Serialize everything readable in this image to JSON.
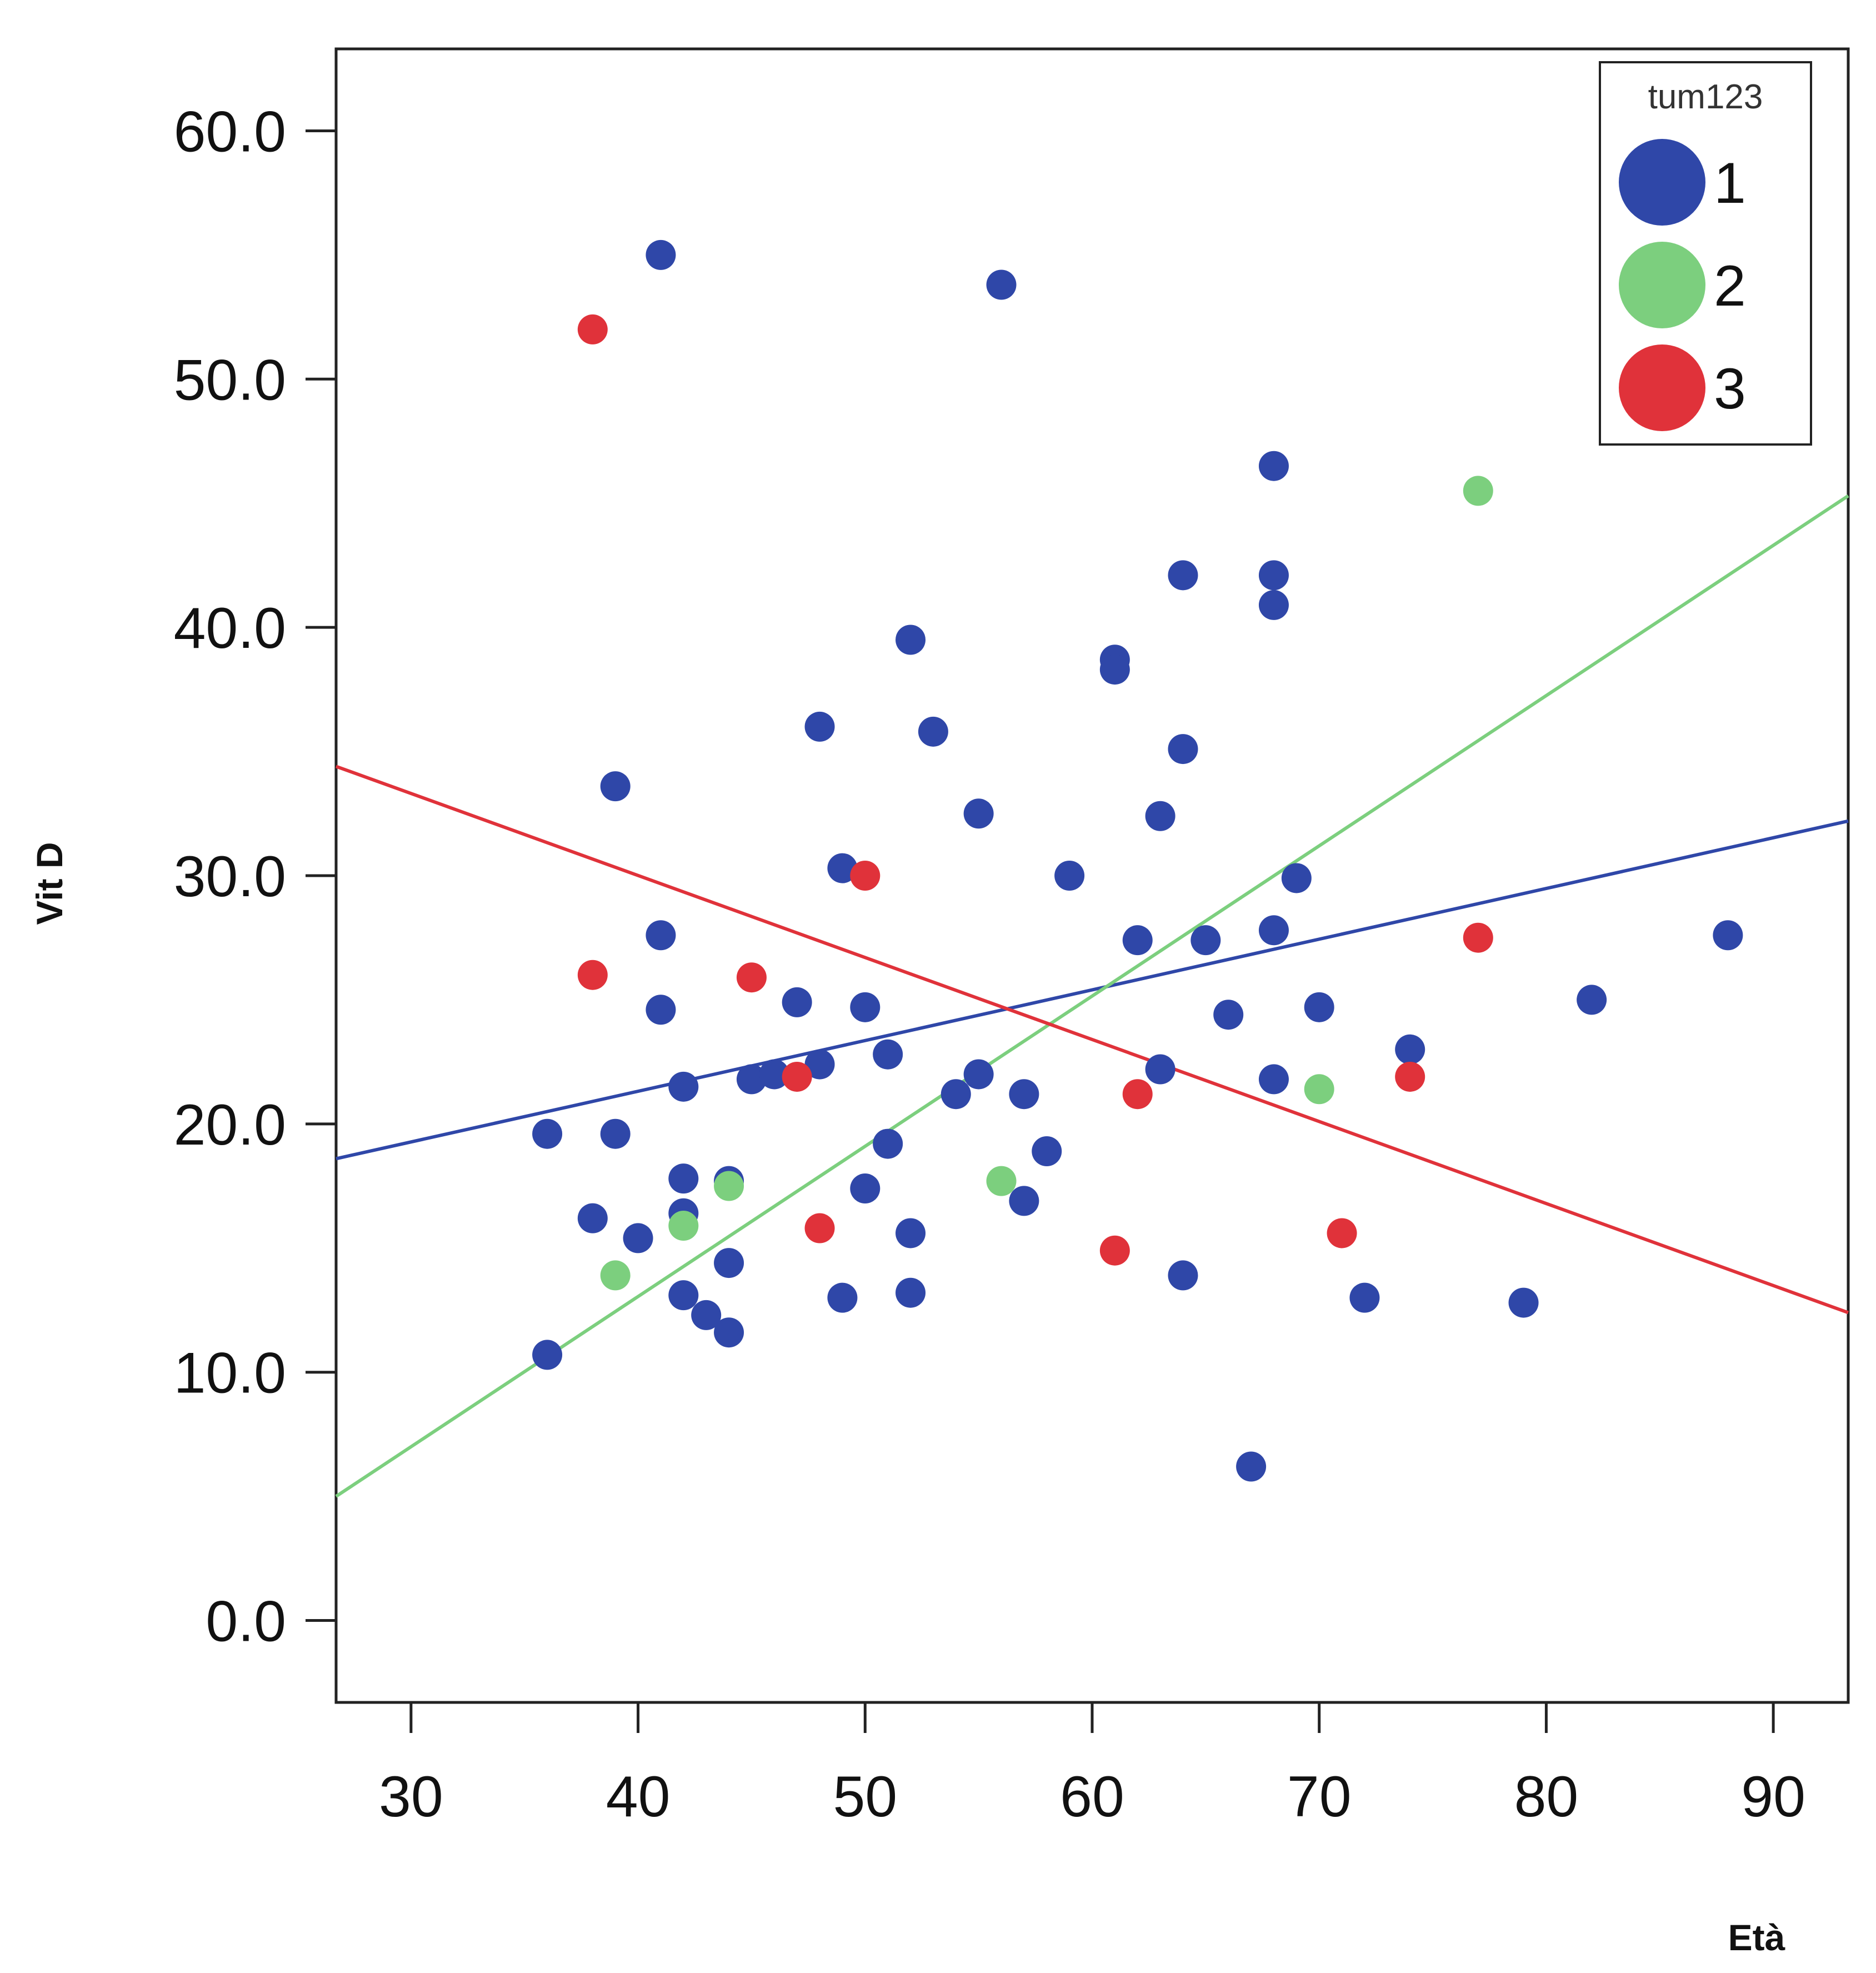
{
  "chart_data": {
    "type": "scatter",
    "title": "",
    "xlabel": "Età",
    "ylabel": "Vit D",
    "xlim": [
      26.7,
      93.3
    ],
    "ylim": [
      -3.3,
      63.3
    ],
    "xticks": [
      30,
      40,
      50,
      60,
      70,
      80,
      90
    ],
    "yticks": [
      0,
      10,
      20,
      30,
      40,
      50,
      60
    ],
    "xtick_labels": [
      "30",
      "40",
      "50",
      "60",
      "70",
      "80",
      "90"
    ],
    "ytick_labels": [
      "0.0",
      "10.0",
      "20.0",
      "30.0",
      "40.0",
      "50.0",
      "60.0"
    ],
    "grid": false,
    "legend": {
      "title": "tum123",
      "position": "top-right"
    },
    "series": [
      {
        "name": "1",
        "color": "#2f47a8",
        "points": [
          [
            41,
            55.0
          ],
          [
            56,
            53.8
          ],
          [
            68,
            46.5
          ],
          [
            64,
            42.1
          ],
          [
            68,
            42.1
          ],
          [
            68,
            40.9
          ],
          [
            52,
            39.5
          ],
          [
            61,
            38.7
          ],
          [
            61,
            38.3
          ],
          [
            48,
            36.0
          ],
          [
            53,
            35.8
          ],
          [
            64,
            35.1
          ],
          [
            39,
            33.6
          ],
          [
            55,
            32.5
          ],
          [
            63,
            32.4
          ],
          [
            49,
            30.3
          ],
          [
            59,
            30.0
          ],
          [
            69,
            29.9
          ],
          [
            41,
            27.6
          ],
          [
            62,
            27.4
          ],
          [
            65,
            27.4
          ],
          [
            68,
            27.8
          ],
          [
            88,
            27.6
          ],
          [
            47,
            24.9
          ],
          [
            41,
            24.6
          ],
          [
            50,
            24.7
          ],
          [
            66,
            24.4
          ],
          [
            70,
            24.7
          ],
          [
            82,
            25.0
          ],
          [
            51,
            22.8
          ],
          [
            74,
            23.0
          ],
          [
            48,
            22.4
          ],
          [
            45,
            21.8
          ],
          [
            46,
            22.0
          ],
          [
            55,
            22.0
          ],
          [
            63,
            22.2
          ],
          [
            68,
            21.8
          ],
          [
            42,
            21.5
          ],
          [
            54,
            21.2
          ],
          [
            57,
            21.2
          ],
          [
            36,
            19.6
          ],
          [
            39,
            19.6
          ],
          [
            51,
            19.2
          ],
          [
            58,
            18.9
          ],
          [
            42,
            17.8
          ],
          [
            44,
            17.7
          ],
          [
            50,
            17.4
          ],
          [
            57,
            16.9
          ],
          [
            42,
            16.4
          ],
          [
            38,
            16.2
          ],
          [
            40,
            15.4
          ],
          [
            52,
            15.6
          ],
          [
            44,
            14.4
          ],
          [
            64,
            13.9
          ],
          [
            42,
            13.1
          ],
          [
            49,
            13.0
          ],
          [
            52,
            13.2
          ],
          [
            72,
            13.0
          ],
          [
            79,
            12.8
          ],
          [
            43,
            12.3
          ],
          [
            44,
            11.6
          ],
          [
            36,
            10.7
          ],
          [
            67,
            6.2
          ]
        ],
        "fit": {
          "x": [
            26.7,
            93.3
          ],
          "y": [
            18.6,
            32.2
          ]
        }
      },
      {
        "name": "2",
        "color": "#7ccf7e",
        "points": [
          [
            77,
            45.5
          ],
          [
            70,
            21.4
          ],
          [
            56,
            17.7
          ],
          [
            44,
            17.5
          ],
          [
            42,
            15.9
          ],
          [
            39,
            13.9
          ]
        ],
        "fit": {
          "x": [
            26.7,
            93.3
          ],
          "y": [
            5.0,
            45.3
          ]
        }
      },
      {
        "name": "3",
        "color": "#e0323a",
        "points": [
          [
            38,
            52.0
          ],
          [
            50,
            30.0
          ],
          [
            77,
            27.5
          ],
          [
            38,
            26.0
          ],
          [
            45,
            25.9
          ],
          [
            47,
            21.9
          ],
          [
            74,
            21.9
          ],
          [
            62,
            21.2
          ],
          [
            48,
            15.8
          ],
          [
            71,
            15.6
          ],
          [
            61,
            14.9
          ]
        ],
        "fit": {
          "x": [
            26.7,
            93.3
          ],
          "y": [
            34.4,
            12.4
          ]
        }
      }
    ]
  }
}
